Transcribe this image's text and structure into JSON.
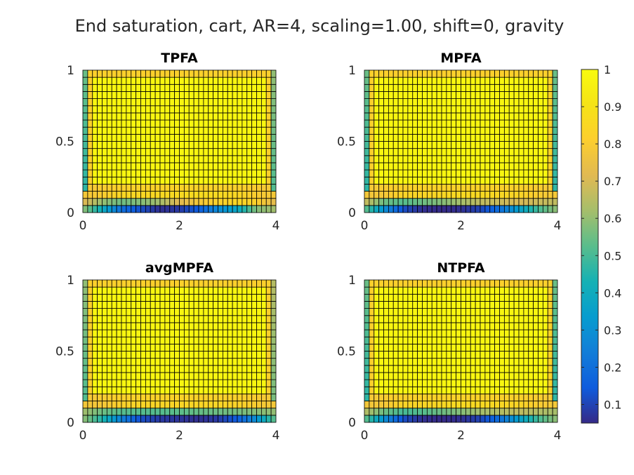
{
  "figure": {
    "title": "End saturation, cart, AR=4, scaling=1.00, shift=0, gravity"
  },
  "chart_data": {
    "type": "heatmap",
    "title": "End saturation, cart, AR=4, scaling=1.00, shift=0, gravity",
    "grid": {
      "nx": 40,
      "ny": 20,
      "xlim": [
        0,
        4
      ],
      "ylim": [
        0,
        1
      ]
    },
    "xticks": [
      "0",
      "2",
      "4"
    ],
    "yticks": [
      "0",
      "0.5",
      "1"
    ],
    "colorbar": {
      "min": 0.05,
      "max": 1,
      "colormap": "parula",
      "ticks": [
        "0.1",
        "0.2",
        "0.3",
        "0.4",
        "0.5",
        "0.6",
        "0.7",
        "0.8",
        "0.9",
        "1"
      ]
    },
    "panels": [
      {
        "name": "TPFA",
        "row0": [
          0.6,
          0.4,
          0.2,
          0.12,
          0.06,
          0.08,
          0.15,
          0.28,
          0.38,
          0.58,
          0.62
        ],
        "row1": [
          0.72,
          0.6,
          0.55,
          0.58,
          0.62,
          0.72,
          0.78,
          0.82,
          0.85,
          0.82,
          0.72
        ],
        "row2": [
          0.78,
          0.8,
          0.85,
          0.85,
          0.86,
          0.86,
          0.87,
          0.86,
          0.85,
          0.8,
          0.78
        ],
        "row3": [
          0.78,
          0.8,
          0.82,
          0.83,
          0.83,
          0.83,
          0.83,
          0.82,
          0.82,
          0.8,
          0.78
        ],
        "left_edge": 0.45,
        "right_edge": 0.5,
        "inner_ring": 0.82,
        "interior": 0.98
      },
      {
        "name": "MPFA",
        "row0": [
          0.55,
          0.3,
          0.12,
          0.06,
          0.05,
          0.06,
          0.1,
          0.2,
          0.35,
          0.5,
          0.6
        ],
        "row1": [
          0.68,
          0.55,
          0.52,
          0.55,
          0.58,
          0.62,
          0.66,
          0.68,
          0.7,
          0.68,
          0.66
        ],
        "row2": [
          0.78,
          0.78,
          0.84,
          0.84,
          0.85,
          0.86,
          0.86,
          0.85,
          0.84,
          0.8,
          0.78
        ],
        "row3": [
          0.78,
          0.8,
          0.82,
          0.83,
          0.83,
          0.83,
          0.83,
          0.82,
          0.82,
          0.8,
          0.78
        ],
        "left_edge": 0.45,
        "right_edge": 0.45,
        "inner_ring": 0.82,
        "interior": 0.98
      },
      {
        "name": "avgMPFA",
        "row0": [
          0.6,
          0.45,
          0.25,
          0.12,
          0.08,
          0.07,
          0.06,
          0.08,
          0.15,
          0.3,
          0.55
        ],
        "row1": [
          0.62,
          0.55,
          0.52,
          0.52,
          0.52,
          0.53,
          0.54,
          0.55,
          0.56,
          0.58,
          0.6
        ],
        "row2": [
          0.78,
          0.78,
          0.82,
          0.84,
          0.84,
          0.84,
          0.84,
          0.84,
          0.83,
          0.8,
          0.78
        ],
        "row3": [
          0.78,
          0.8,
          0.82,
          0.83,
          0.83,
          0.83,
          0.83,
          0.82,
          0.82,
          0.8,
          0.78
        ],
        "left_edge": 0.5,
        "right_edge": 0.55,
        "inner_ring": 0.82,
        "interior": 0.98
      },
      {
        "name": "NTPFA",
        "row0": [
          0.55,
          0.3,
          0.12,
          0.06,
          0.05,
          0.06,
          0.1,
          0.2,
          0.35,
          0.5,
          0.6
        ],
        "row1": [
          0.65,
          0.55,
          0.5,
          0.52,
          0.55,
          0.58,
          0.62,
          0.64,
          0.66,
          0.64,
          0.62
        ],
        "row2": [
          0.78,
          0.78,
          0.84,
          0.84,
          0.85,
          0.86,
          0.86,
          0.85,
          0.84,
          0.8,
          0.78
        ],
        "row3": [
          0.78,
          0.8,
          0.82,
          0.83,
          0.83,
          0.83,
          0.83,
          0.82,
          0.82,
          0.8,
          0.78
        ],
        "left_edge": 0.45,
        "right_edge": 0.45,
        "inner_ring": 0.82,
        "interior": 0.98
      }
    ]
  }
}
